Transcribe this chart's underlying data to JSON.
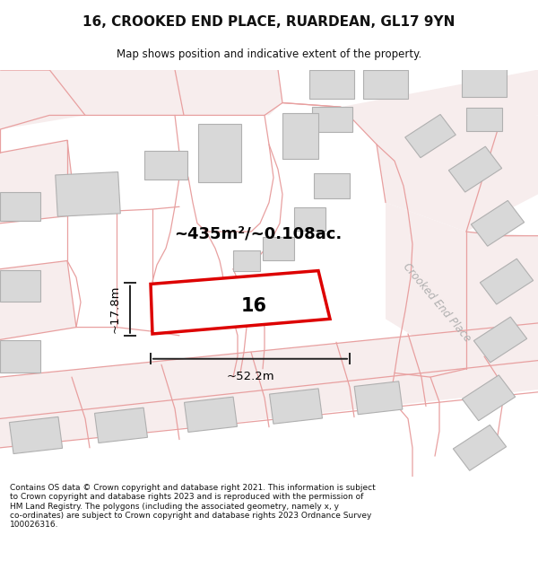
{
  "title": "16, CROOKED END PLACE, RUARDEAN, GL17 9YN",
  "subtitle": "Map shows position and indicative extent of the property.",
  "footer": "Contains OS data © Crown copyright and database right 2021. This information is subject\nto Crown copyright and database rights 2023 and is reproduced with the permission of\nHM Land Registry. The polygons (including the associated geometry, namely x, y\nco-ordinates) are subject to Crown copyright and database rights 2023 Ordnance Survey\n100026316.",
  "area_label": "~435m²/~0.108ac.",
  "property_number": "16",
  "dim_width": "~52.2m",
  "dim_height": "~17.8m",
  "map_bg": "#ffffff",
  "line_color": "#e8a0a0",
  "road_fill": "#f7eded",
  "building_color": "#d8d8d8",
  "building_edge": "#b0b0b0",
  "property_fill": "#ffffff",
  "property_edge": "#dd0000",
  "street_label_color": "#b0b0b0",
  "street_label": "Crooked End Place",
  "dim_line_color": "#222222",
  "text_color": "#111111"
}
